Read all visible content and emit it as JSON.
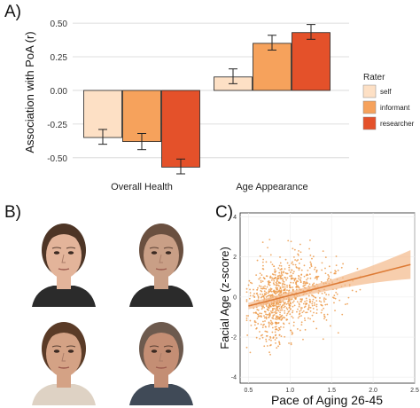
{
  "panels": {
    "a": "A)",
    "b": "B)",
    "c": "C)"
  },
  "colors": {
    "self": "#fde0c5",
    "informant": "#f6a25c",
    "researcher": "#e4512a",
    "scatter": "#ec9a4a",
    "trend": "#dd7b36",
    "grid": "#d4d4d4"
  },
  "faces": [
    {
      "icon": "young-woman-face-icon",
      "skin": "#e3b49a",
      "hair": "#4d3526",
      "shirt": "#2b2b2b"
    },
    {
      "icon": "older-woman-face-icon",
      "skin": "#c99f86",
      "hair": "#6a5040",
      "shirt": "#2b2b2b"
    },
    {
      "icon": "young-man-face-icon",
      "skin": "#d4a285",
      "hair": "#5a3b27",
      "shirt": "#ded2c4"
    },
    {
      "icon": "older-man-face-icon",
      "skin": "#c48e74",
      "hair": "#6d5a4e",
      "shirt": "#404a57"
    }
  ],
  "chart_data": [
    {
      "type": "bar",
      "ylabel": "Association with PoA (r)",
      "xlabel": "",
      "categories": [
        "Overall Health",
        "Age Appearance"
      ],
      "ylim": [
        -0.62,
        0.56
      ],
      "yticks": [
        "0.50",
        "0.25",
        "0.00",
        "-0.25",
        "-0.50"
      ],
      "grid": true,
      "legend_title": "Rater",
      "legend_position": "right",
      "series": [
        {
          "name": "self",
          "values": [
            -0.35,
            0.1
          ],
          "err_low": [
            -0.4,
            0.05
          ],
          "err_high": [
            -0.29,
            0.16
          ]
        },
        {
          "name": "informant",
          "values": [
            -0.38,
            0.35
          ],
          "err_low": [
            -0.44,
            0.3
          ],
          "err_high": [
            -0.32,
            0.41
          ]
        },
        {
          "name": "researcher",
          "values": [
            -0.57,
            0.43
          ],
          "err_low": [
            -0.62,
            0.38
          ],
          "err_high": [
            -0.51,
            0.49
          ]
        }
      ]
    },
    {
      "type": "scatter",
      "xlabel": "Pace of Aging 26-45",
      "ylabel": "Facial Age (z-score)",
      "xlim": [
        0.4,
        2.5
      ],
      "ylim": [
        -4.3,
        4.2
      ],
      "xticks": [
        "0.5",
        "1.0",
        "1.5",
        "2.0",
        "2.5"
      ],
      "yticks": [
        "4",
        "2",
        "0",
        "-2",
        "-4"
      ],
      "trend": {
        "x": [
          0.5,
          2.45
        ],
        "y": [
          -0.45,
          1.62
        ],
        "ci_start": 0.14,
        "ci_end": 0.3
      },
      "points": "approximately 950 points, densest near x = 0.6–1.3, y = -2 to 2"
    }
  ]
}
